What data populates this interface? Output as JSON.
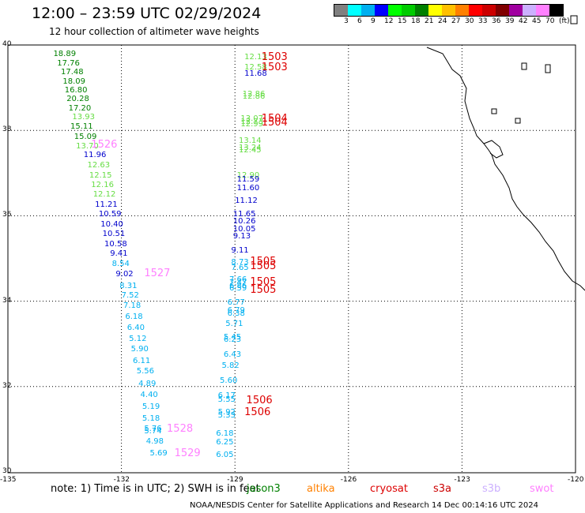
{
  "header": {
    "title": "12:00 – 23:59 UTC 02/29/2024",
    "subtitle": "12 hour collection of altimeter wave heights"
  },
  "colorbar": {
    "colors": [
      "#808080",
      "#00ffff",
      "#00b0f0",
      "#0000ff",
      "#00ff00",
      "#00cc00",
      "#008000",
      "#ffff00",
      "#ffc000",
      "#ff8000",
      "#ff0000",
      "#cc0000",
      "#800000",
      "#a000a0",
      "#ccb0ff",
      "#ff80ff",
      "#000000"
    ],
    "labels": [
      "3",
      "6",
      "9",
      "12",
      "15",
      "18",
      "21",
      "24",
      "27",
      "30",
      "33",
      "36",
      "39",
      "42",
      "45",
      "70",
      "(ft)"
    ]
  },
  "axes": {
    "lat_labels": [
      "40",
      "38",
      "36",
      "34",
      "32",
      "30"
    ],
    "lon_labels": [
      "-135",
      "-132",
      "-129",
      "-126",
      "-123",
      "-120"
    ]
  },
  "observations": [
    {
      "v": "18.89",
      "c": "#008000",
      "lon": -133.8,
      "lat": 39.77
    },
    {
      "v": "17.76",
      "c": "#008000",
      "lon": -133.7,
      "lat": 39.56
    },
    {
      "v": "17.48",
      "c": "#008000",
      "lon": -133.6,
      "lat": 39.36
    },
    {
      "v": "18.09",
      "c": "#008000",
      "lon": -133.55,
      "lat": 39.14
    },
    {
      "v": "16.80",
      "c": "#008000",
      "lon": -133.5,
      "lat": 38.93
    },
    {
      "v": "20.28",
      "c": "#008000",
      "lon": -133.45,
      "lat": 38.72
    },
    {
      "v": "17.20",
      "c": "#008000",
      "lon": -133.4,
      "lat": 38.51
    },
    {
      "v": "13.93",
      "c": "#66dd44",
      "lon": -133.3,
      "lat": 38.3
    },
    {
      "v": "15.11",
      "c": "#008000",
      "lon": -133.35,
      "lat": 38.07
    },
    {
      "v": "15.09",
      "c": "#008000",
      "lon": -133.25,
      "lat": 37.84
    },
    {
      "v": "13.70",
      "c": "#66dd44",
      "lon": -133.2,
      "lat": 37.62
    },
    {
      "v": "11.96",
      "c": "#0000cc",
      "lon": -133.0,
      "lat": 37.42
    },
    {
      "v": "12.63",
      "c": "#66dd44",
      "lon": -132.9,
      "lat": 37.17
    },
    {
      "v": "12.15",
      "c": "#66dd44",
      "lon": -132.85,
      "lat": 36.94
    },
    {
      "v": "12.16",
      "c": "#66dd44",
      "lon": -132.8,
      "lat": 36.71
    },
    {
      "v": "12.12",
      "c": "#66dd44",
      "lon": -132.75,
      "lat": 36.48
    },
    {
      "v": "11.21",
      "c": "#0000cc",
      "lon": -132.7,
      "lat": 36.25
    },
    {
      "v": "10.59",
      "c": "#0000cc",
      "lon": -132.6,
      "lat": 36.02
    },
    {
      "v": "10.40",
      "c": "#0000cc",
      "lon": -132.55,
      "lat": 35.79
    },
    {
      "v": "10.51",
      "c": "#0000cc",
      "lon": -132.5,
      "lat": 35.56
    },
    {
      "v": "10.58",
      "c": "#0000cc",
      "lon": -132.45,
      "lat": 35.33
    },
    {
      "v": "9.41",
      "c": "#0000cc",
      "lon": -132.3,
      "lat": 35.1
    },
    {
      "v": "8.54",
      "c": "#00b0f0",
      "lon": -132.25,
      "lat": 34.87
    },
    {
      "v": "9.02",
      "c": "#0000cc",
      "lon": -132.15,
      "lat": 34.63
    },
    {
      "v": "8.31",
      "c": "#00b0f0",
      "lon": -132.05,
      "lat": 34.34
    },
    {
      "v": "7.52",
      "c": "#00b0f0",
      "lon": -132.0,
      "lat": 34.12
    },
    {
      "v": "7.18",
      "c": "#00b0f0",
      "lon": -131.95,
      "lat": 33.88
    },
    {
      "v": "6.18",
      "c": "#00b0f0",
      "lon": -131.9,
      "lat": 33.63
    },
    {
      "v": "6.40",
      "c": "#00b0f0",
      "lon": -131.85,
      "lat": 33.37
    },
    {
      "v": "5.12",
      "c": "#00b0f0",
      "lon": -131.8,
      "lat": 33.11
    },
    {
      "v": "5.90",
      "c": "#00b0f0",
      "lon": -131.75,
      "lat": 32.86
    },
    {
      "v": "6.11",
      "c": "#00b0f0",
      "lon": -131.7,
      "lat": 32.59
    },
    {
      "v": "5.56",
      "c": "#00b0f0",
      "lon": -131.6,
      "lat": 32.34
    },
    {
      "v": "4.89",
      "c": "#00b0f0",
      "lon": -131.55,
      "lat": 32.06
    },
    {
      "v": "4.40",
      "c": "#00b0f0",
      "lon": -131.5,
      "lat": 31.79
    },
    {
      "v": "5.19",
      "c": "#00b0f0",
      "lon": -131.45,
      "lat": 31.51
    },
    {
      "v": "5.18",
      "c": "#00b0f0",
      "lon": -131.45,
      "lat": 31.23
    },
    {
      "v": "5.76",
      "c": "#00b0f0",
      "lon": -131.4,
      "lat": 30.99
    },
    {
      "v": "5.74",
      "c": "#00b0f0",
      "lon": -131.4,
      "lat": 30.94
    },
    {
      "v": "4.98",
      "c": "#00b0f0",
      "lon": -131.35,
      "lat": 30.7
    },
    {
      "v": "5.69",
      "c": "#00b0f0",
      "lon": -131.25,
      "lat": 30.43
    },
    {
      "v": "12.13",
      "c": "#66dd44",
      "lon": -128.75,
      "lat": 39.7
    },
    {
      "v": "12.58",
      "c": "#66dd44",
      "lon": -128.75,
      "lat": 39.47
    },
    {
      "v": "11.68",
      "c": "#0000cc",
      "lon": -128.75,
      "lat": 39.32
    },
    {
      "v": "12.86",
      "c": "#66dd44",
      "lon": -128.8,
      "lat": 38.83
    },
    {
      "v": "12.86",
      "c": "#66dd44",
      "lon": -128.8,
      "lat": 38.78
    },
    {
      "v": "13.07",
      "c": "#66dd44",
      "lon": -128.85,
      "lat": 38.27
    },
    {
      "v": "12.73",
      "c": "#66dd44",
      "lon": -128.85,
      "lat": 38.18
    },
    {
      "v": "12.99",
      "c": "#66dd44",
      "lon": -128.85,
      "lat": 38.13
    },
    {
      "v": "13.14",
      "c": "#66dd44",
      "lon": -128.9,
      "lat": 37.75
    },
    {
      "v": "13.24",
      "c": "#66dd44",
      "lon": -128.9,
      "lat": 37.58
    },
    {
      "v": "12.45",
      "c": "#66dd44",
      "lon": -128.9,
      "lat": 37.53
    },
    {
      "v": "12.90",
      "c": "#66dd44",
      "lon": -128.95,
      "lat": 36.93
    },
    {
      "v": "11.59",
      "c": "#0000cc",
      "lon": -128.95,
      "lat": 36.83
    },
    {
      "v": "11.60",
      "c": "#0000cc",
      "lon": -128.95,
      "lat": 36.63
    },
    {
      "v": "11.12",
      "c": "#0000cc",
      "lon": -129.0,
      "lat": 36.34
    },
    {
      "v": "11.65",
      "c": "#0000cc",
      "lon": -129.05,
      "lat": 36.03
    },
    {
      "v": "10.26",
      "c": "#0000cc",
      "lon": -129.05,
      "lat": 35.86
    },
    {
      "v": "10.05",
      "c": "#0000cc",
      "lon": -129.05,
      "lat": 35.68
    },
    {
      "v": "9.13",
      "c": "#0000cc",
      "lon": -129.05,
      "lat": 35.5
    },
    {
      "v": "9.11",
      "c": "#0000cc",
      "lon": -129.1,
      "lat": 35.18
    },
    {
      "v": "8.73",
      "c": "#00b0f0",
      "lon": -129.1,
      "lat": 34.89
    },
    {
      "v": "7.65",
      "c": "#00b0f0",
      "lon": -129.1,
      "lat": 34.76
    },
    {
      "v": "7.66",
      "c": "#00b0f0",
      "lon": -129.15,
      "lat": 34.49
    },
    {
      "v": "7.47",
      "c": "#00b0f0",
      "lon": -129.15,
      "lat": 34.42
    },
    {
      "v": "6.86",
      "c": "#00b0f0",
      "lon": -129.15,
      "lat": 34.34
    },
    {
      "v": "6.59",
      "c": "#00b0f0",
      "lon": -129.15,
      "lat": 34.29
    },
    {
      "v": "6.77",
      "c": "#00b0f0",
      "lon": -129.2,
      "lat": 33.95
    },
    {
      "v": "6.79",
      "c": "#00b0f0",
      "lon": -129.2,
      "lat": 33.77
    },
    {
      "v": "6.38",
      "c": "#00b0f0",
      "lon": -129.2,
      "lat": 33.7
    },
    {
      "v": "5.71",
      "c": "#00b0f0",
      "lon": -129.25,
      "lat": 33.45
    },
    {
      "v": "5.45",
      "c": "#00b0f0",
      "lon": -129.3,
      "lat": 33.15
    },
    {
      "v": "6.23",
      "c": "#00b0f0",
      "lon": -129.3,
      "lat": 33.08
    },
    {
      "v": "6.43",
      "c": "#00b0f0",
      "lon": -129.3,
      "lat": 32.73
    },
    {
      "v": "5.82",
      "c": "#00b0f0",
      "lon": -129.35,
      "lat": 32.47
    },
    {
      "v": "5.60",
      "c": "#00b0f0",
      "lon": -129.4,
      "lat": 32.13
    },
    {
      "v": "6.17",
      "c": "#00b0f0",
      "lon": -129.45,
      "lat": 31.77
    },
    {
      "v": "5.55",
      "c": "#00b0f0",
      "lon": -129.45,
      "lat": 31.68
    },
    {
      "v": "5.92",
      "c": "#00b0f0",
      "lon": -129.45,
      "lat": 31.38
    },
    {
      "v": "5.33",
      "c": "#00b0f0",
      "lon": -129.45,
      "lat": 31.31
    },
    {
      "v": "6.18",
      "c": "#00b0f0",
      "lon": -129.5,
      "lat": 30.88
    },
    {
      "v": "6.25",
      "c": "#00b0f0",
      "lon": -129.5,
      "lat": 30.68
    },
    {
      "v": "6.05",
      "c": "#00b0f0",
      "lon": -129.5,
      "lat": 30.38
    }
  ],
  "tracks": [
    {
      "id": "1503",
      "c": "#dd0000",
      "lon": -128.3,
      "lat": 39.7
    },
    {
      "id": "1503",
      "c": "#dd0000",
      "lon": -128.3,
      "lat": 39.47
    },
    {
      "id": "1504",
      "c": "#dd0000",
      "lon": -128.3,
      "lat": 38.26
    },
    {
      "id": "1504",
      "c": "#dd0000",
      "lon": -128.3,
      "lat": 38.17
    },
    {
      "id": "1526",
      "c": "#ff80ff",
      "lon": -132.8,
      "lat": 37.65
    },
    {
      "id": "1505",
      "c": "#dd0000",
      "lon": -128.6,
      "lat": 34.91
    },
    {
      "id": "1505",
      "c": "#dd0000",
      "lon": -128.6,
      "lat": 34.81
    },
    {
      "id": "1505",
      "c": "#dd0000",
      "lon": -128.6,
      "lat": 34.44
    },
    {
      "id": "1505",
      "c": "#dd0000",
      "lon": -128.6,
      "lat": 34.26
    },
    {
      "id": "1527",
      "c": "#ff80ff",
      "lon": -131.4,
      "lat": 34.64
    },
    {
      "id": "1506",
      "c": "#dd0000",
      "lon": -128.7,
      "lat": 31.67
    },
    {
      "id": "1506",
      "c": "#dd0000",
      "lon": -128.75,
      "lat": 31.39
    },
    {
      "id": "1528",
      "c": "#ff80ff",
      "lon": -130.8,
      "lat": 31.0
    },
    {
      "id": "1529",
      "c": "#ff80ff",
      "lon": -130.6,
      "lat": 30.42
    }
  ],
  "note": "note:  1) Time is in UTC;  2) SWH is in feet",
  "legend": [
    {
      "label": "jason3",
      "c": "#008000"
    },
    {
      "label": "altika",
      "c": "#ff8000"
    },
    {
      "label": "cryosat",
      "c": "#dd0000"
    },
    {
      "label": "s3a",
      "c": "#cc0000"
    },
    {
      "label": "s3b",
      "c": "#ccb0ff"
    },
    {
      "label": "swot",
      "c": "#ff80ff"
    }
  ],
  "footer": "NOAA/NESDIS Center for Satellite Applications and Research    14 Dec 00:14:16 UTC 2024"
}
